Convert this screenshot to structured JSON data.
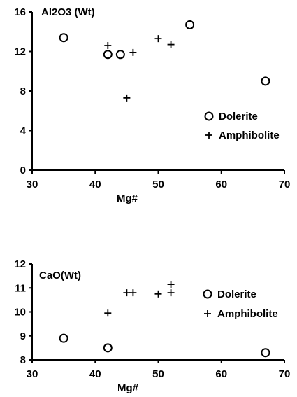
{
  "chart_data": [
    {
      "type": "scatter",
      "title": "Al2O3 (Wt)",
      "xlabel": "Mg#",
      "ylabel": "",
      "xlim": [
        30,
        70
      ],
      "ylim": [
        0,
        16
      ],
      "xticks": [
        "30",
        "40",
        "50",
        "60",
        "70"
      ],
      "yticks": [
        "0",
        "4",
        "8",
        "12",
        "16"
      ],
      "legend_position": "right",
      "grid": false,
      "series": [
        {
          "name": "Dolerite",
          "marker": "circle",
          "x": [
            35,
            42,
            44,
            55,
            67
          ],
          "y": [
            13.4,
            11.7,
            11.7,
            14.7,
            9.0
          ]
        },
        {
          "name": "Amphibolite",
          "marker": "plus",
          "x": [
            42,
            45,
            46,
            50,
            52
          ],
          "y": [
            12.6,
            7.3,
            11.9,
            13.3,
            12.7
          ]
        }
      ]
    },
    {
      "type": "scatter",
      "title": "CaO(Wt)",
      "xlabel": "Mg#",
      "ylabel": "",
      "xlim": [
        30,
        70
      ],
      "ylim": [
        8,
        12
      ],
      "xticks": [
        "30",
        "40",
        "50",
        "60",
        "70"
      ],
      "yticks": [
        "8",
        "9",
        "10",
        "11",
        "12"
      ],
      "legend_position": "right",
      "grid": false,
      "series": [
        {
          "name": "Dolerite",
          "marker": "circle",
          "x": [
            35,
            42,
            67
          ],
          "y": [
            8.9,
            8.5,
            8.3
          ]
        },
        {
          "name": "Amphibolite",
          "marker": "plus",
          "x": [
            42,
            45,
            46,
            50,
            52,
            52
          ],
          "y": [
            9.95,
            10.8,
            10.8,
            10.75,
            10.8,
            11.15
          ]
        }
      ]
    }
  ]
}
